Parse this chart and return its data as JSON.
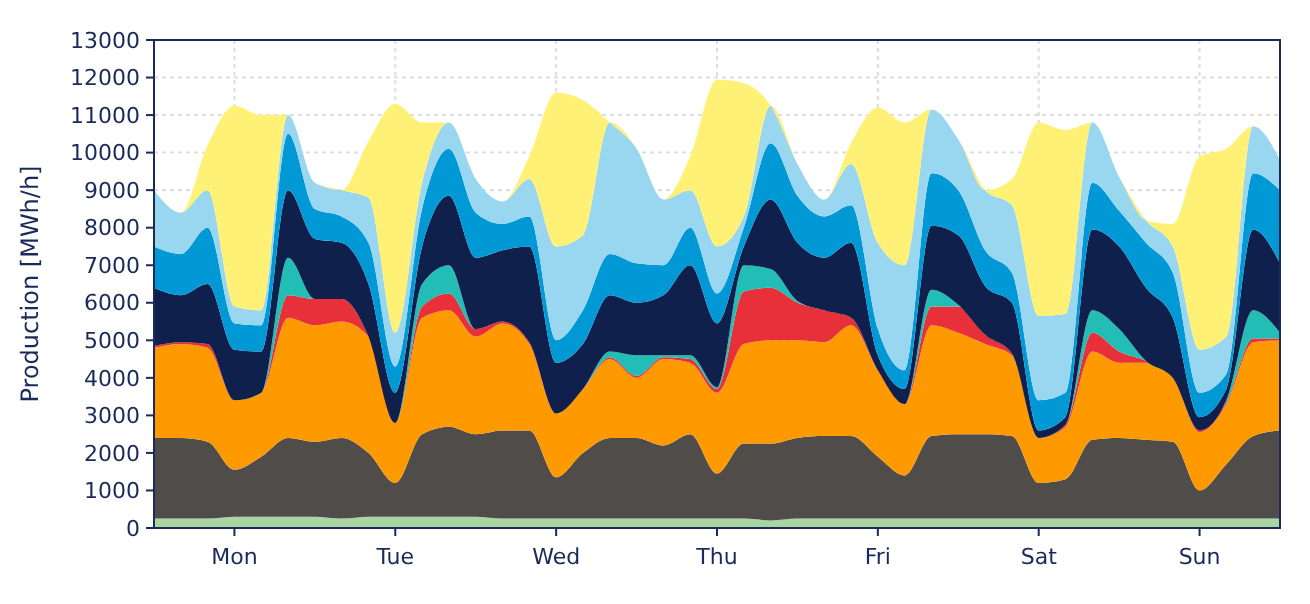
{
  "chart_data": {
    "type": "area",
    "stacked": true,
    "ylabel": "Production [MWh/h]",
    "ylim": [
      0,
      13000
    ],
    "yticks": [
      0,
      1000,
      2000,
      3000,
      4000,
      5000,
      6000,
      7000,
      8000,
      9000,
      10000,
      11000,
      12000,
      13000
    ],
    "grid": true,
    "categories": [
      null,
      null,
      null,
      "Mon",
      null,
      null,
      null,
      null,
      null,
      "Tue",
      null,
      null,
      null,
      null,
      null,
      "Wed",
      null,
      null,
      null,
      null,
      null,
      "Thu",
      null,
      null,
      null,
      null,
      null,
      "Fri",
      null,
      null,
      null,
      null,
      null,
      "Sat",
      null,
      null,
      null,
      null,
      null,
      "Sun",
      null,
      null,
      null
    ],
    "series": [
      {
        "color": "#a8d5a2",
        "values": [
          250,
          250,
          250,
          300,
          300,
          300,
          300,
          250,
          300,
          300,
          300,
          300,
          300,
          250,
          250,
          250,
          250,
          250,
          250,
          250,
          250,
          250,
          250,
          200,
          250,
          250,
          250,
          250,
          250,
          250,
          250,
          250,
          250,
          250,
          250,
          250,
          250,
          250,
          250,
          250,
          250,
          250,
          250
        ]
      },
      {
        "color": "#4f4c4a",
        "values": [
          2150,
          2150,
          2050,
          1250,
          1600,
          2100,
          2000,
          2150,
          1700,
          900,
          2200,
          2400,
          2200,
          2350,
          2350,
          1100,
          1750,
          2150,
          2150,
          1950,
          2250,
          1200,
          2000,
          2050,
          2150,
          2200,
          2200,
          1650,
          1150,
          2200,
          2250,
          2250,
          2200,
          950,
          1050,
          2100,
          2150,
          2100,
          2050,
          750,
          1450,
          2200,
          2350
        ]
      },
      {
        "color": "#ff9900",
        "values": [
          2400,
          2500,
          2500,
          1850,
          1700,
          3200,
          3100,
          3100,
          3100,
          1600,
          3100,
          3100,
          2600,
          2850,
          2300,
          1700,
          1700,
          2100,
          1600,
          2300,
          1900,
          2150,
          2650,
          2750,
          2600,
          2500,
          2950,
          2300,
          1900,
          2950,
          2700,
          2400,
          2150,
          1200,
          1400,
          2350,
          2000,
          2050,
          1700,
          1550,
          1600,
          2500,
          2400
        ]
      },
      {
        "color": "#e8303a",
        "values": [
          50,
          50,
          100,
          0,
          0,
          600,
          700,
          600,
          0,
          0,
          300,
          450,
          200,
          50,
          50,
          0,
          0,
          50,
          50,
          50,
          100,
          100,
          1400,
          1400,
          1000,
          850,
          200,
          0,
          0,
          500,
          700,
          250,
          50,
          0,
          50,
          500,
          300,
          50,
          0,
          50,
          50,
          100,
          50
        ]
      },
      {
        "color": "#22bdb4",
        "values": [
          0,
          0,
          0,
          0,
          0,
          1000,
          0,
          0,
          0,
          0,
          600,
          750,
          0,
          0,
          0,
          0,
          0,
          150,
          550,
          50,
          100,
          50,
          700,
          500,
          50,
          0,
          0,
          0,
          0,
          450,
          50,
          0,
          0,
          0,
          0,
          600,
          600,
          0,
          0,
          0,
          50,
          750,
          150
        ]
      },
      {
        "color": "#10204d",
        "values": [
          1550,
          1250,
          1600,
          1350,
          1100,
          1800,
          1600,
          1500,
          1400,
          800,
          1000,
          1850,
          1900,
          1900,
          2550,
          1350,
          1200,
          1500,
          1400,
          1600,
          2400,
          1700,
          500,
          1850,
          1550,
          1400,
          2000,
          400,
          400,
          1700,
          1850,
          1300,
          1350,
          200,
          200,
          2150,
          2200,
          1950,
          1600,
          350,
          300,
          2150,
          1850
        ]
      },
      {
        "color": "#0099d6",
        "values": [
          1100,
          1100,
          1500,
          700,
          700,
          1500,
          800,
          700,
          1100,
          700,
          1000,
          1250,
          1200,
          700,
          800,
          600,
          900,
          1100,
          1050,
          800,
          1000,
          800,
          500,
          1500,
          1250,
          1100,
          1000,
          700,
          500,
          1400,
          1200,
          950,
          800,
          800,
          650,
          1250,
          950,
          1200,
          1200,
          650,
          400,
          1500,
          1950
        ]
      },
      {
        "color": "#99d6ef",
        "values": [
          1500,
          1100,
          1000,
          450,
          400,
          500,
          700,
          700,
          1200,
          900,
          700,
          700,
          900,
          600,
          1000,
          2500,
          2000,
          3500,
          3050,
          1750,
          1000,
          1250,
          300,
          1000,
          850,
          450,
          1100,
          2300,
          2800,
          1700,
          1350,
          1600,
          1800,
          2250,
          2100,
          1600,
          900,
          600,
          700,
          1150,
          1000,
          1250,
          800
        ]
      },
      {
        "color": "#fff176",
        "values": [
          0,
          0,
          1200,
          5350,
          5200,
          0,
          0,
          0,
          1500,
          6100,
          1600,
          0,
          0,
          0,
          600,
          4100,
          3600,
          0,
          0,
          0,
          900,
          4450,
          3550,
          0,
          0,
          0,
          550,
          3600,
          3800,
          0,
          0,
          0,
          700,
          5150,
          4900,
          0,
          0,
          0,
          600,
          5150,
          5000,
          0,
          0
        ]
      }
    ]
  }
}
